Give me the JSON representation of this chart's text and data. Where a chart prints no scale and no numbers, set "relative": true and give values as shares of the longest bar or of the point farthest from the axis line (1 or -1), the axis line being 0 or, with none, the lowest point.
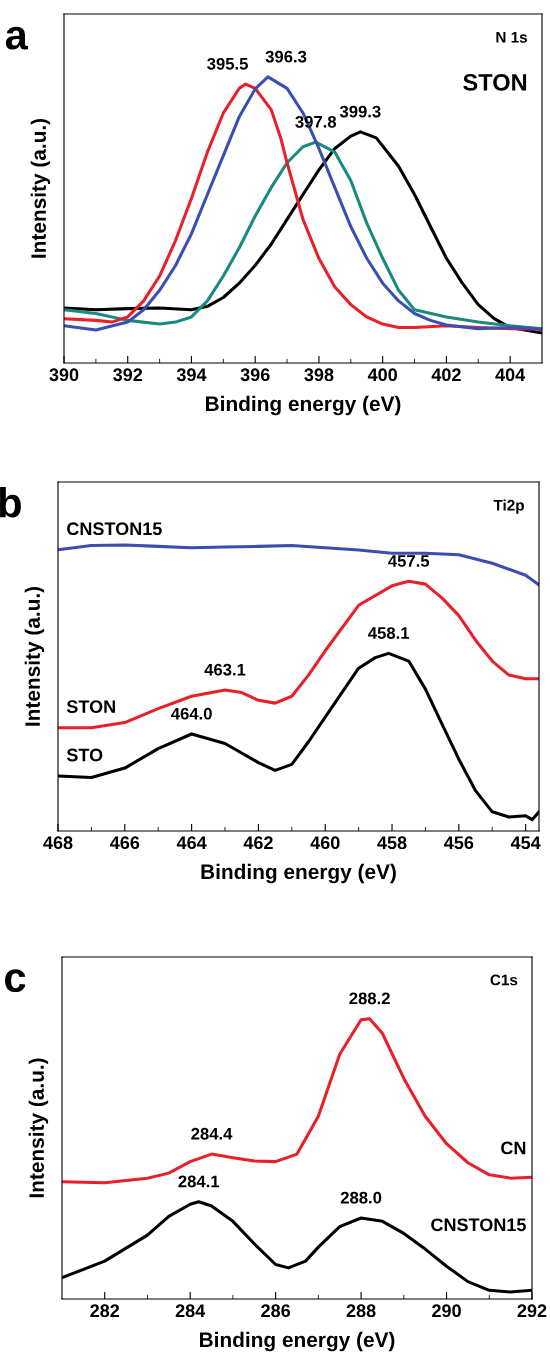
{
  "chart_data": [
    {
      "type": "line",
      "title": "a",
      "xlabel": "Binding energy (eV)",
      "ylabel": "Intensity (a.u.)",
      "relative": true,
      "xlim": [
        390,
        405
      ],
      "xticks": [
        390,
        392,
        394,
        396,
        398,
        400,
        402,
        404
      ],
      "grid": false,
      "legend": false,
      "series": [
        {
          "color": "#000000",
          "x": [
            390,
            391,
            392,
            393,
            394,
            394.5,
            395,
            395.5,
            396,
            396.5,
            397,
            397.5,
            398,
            398.5,
            399,
            399.3,
            399.8,
            400.5,
            401,
            401.5,
            402,
            402.5,
            403,
            403.5,
            404,
            405
          ],
          "values": [
            0.192,
            0.186,
            0.19,
            0.192,
            0.186,
            0.198,
            0.229,
            0.279,
            0.341,
            0.415,
            0.502,
            0.589,
            0.675,
            0.75,
            0.793,
            0.808,
            0.787,
            0.688,
            0.589,
            0.477,
            0.366,
            0.279,
            0.204,
            0.155,
            0.124,
            0.105
          ]
        },
        {
          "color": "#1a8a80",
          "x": [
            390,
            391,
            392,
            393,
            393.5,
            394,
            394.5,
            395,
            395.5,
            396,
            396.5,
            397,
            397.5,
            397.9,
            398.5,
            399,
            399.5,
            400,
            400.5,
            401,
            402,
            403,
            404,
            405
          ],
          "values": [
            0.186,
            0.173,
            0.149,
            0.136,
            0.143,
            0.161,
            0.217,
            0.304,
            0.403,
            0.514,
            0.613,
            0.7,
            0.756,
            0.772,
            0.737,
            0.638,
            0.489,
            0.366,
            0.254,
            0.186,
            0.161,
            0.143,
            0.13,
            0.12
          ]
        },
        {
          "color": "#e8202a",
          "x": [
            390,
            391,
            391.5,
            392,
            392.5,
            393,
            393.5,
            394,
            394.5,
            395,
            395.5,
            395.7,
            396,
            396.5,
            396.8,
            397,
            397.5,
            398,
            398.5,
            399,
            399.5,
            400,
            400.5,
            401,
            402,
            403,
            404,
            405
          ],
          "values": [
            0.155,
            0.149,
            0.143,
            0.161,
            0.217,
            0.304,
            0.428,
            0.576,
            0.737,
            0.874,
            0.96,
            0.975,
            0.96,
            0.886,
            0.787,
            0.7,
            0.502,
            0.365,
            0.266,
            0.204,
            0.161,
            0.136,
            0.124,
            0.124,
            0.13,
            0.124,
            0.12,
            0.118
          ]
        },
        {
          "color": "#3a4fb0",
          "x": [
            390,
            391,
            392,
            392.5,
            393,
            393.5,
            394,
            394.5,
            395,
            395.5,
            396,
            396.4,
            397,
            397.5,
            398,
            398.5,
            399,
            399.5,
            400,
            400.5,
            401,
            401.5,
            402,
            403,
            404,
            405
          ],
          "values": [
            0.13,
            0.115,
            0.143,
            0.186,
            0.254,
            0.341,
            0.452,
            0.589,
            0.725,
            0.861,
            0.958,
            1.0,
            0.96,
            0.874,
            0.75,
            0.613,
            0.477,
            0.366,
            0.279,
            0.217,
            0.173,
            0.149,
            0.133,
            0.12,
            0.124,
            0.118
          ]
        }
      ],
      "annotations": [
        "N 1s",
        "STON",
        {
          "text": "395.5",
          "x": 395.7,
          "y": 0.975
        },
        {
          "text": "396.3",
          "x": 396.4,
          "y": 1.0
        },
        {
          "text": "397.8",
          "x": 397.9,
          "y": 0.772
        },
        {
          "text": "399.3",
          "x": 399.3,
          "y": 0.808
        }
      ]
    },
    {
      "type": "line",
      "title": "b",
      "xlabel": "Binding energy (eV)",
      "ylabel": "Intensity (a.u.)",
      "relative": true,
      "xlim": [
        468,
        453.6
      ],
      "xticks": [
        468,
        466,
        464,
        462,
        460,
        458,
        456,
        454
      ],
      "grid": false,
      "legend": false,
      "series": [
        {
          "name": "CNSTON15",
          "color": "#3a4fb0",
          "x": [
            468,
            467,
            466,
            465,
            464,
            463,
            462,
            461,
            460,
            459,
            458,
            457,
            456,
            455,
            454,
            453.6
          ],
          "values": [
            0.983,
            0.998,
            1.0,
            0.995,
            0.99,
            0.993,
            0.995,
            0.998,
            0.99,
            0.982,
            0.971,
            0.971,
            0.966,
            0.936,
            0.894,
            0.86
          ]
        },
        {
          "name": "STON",
          "color": "#e8202a",
          "x": [
            468,
            467,
            466,
            465,
            464,
            463,
            462.5,
            462,
            461.5,
            461,
            460.5,
            460,
            459,
            458,
            457.5,
            457,
            456.5,
            456,
            455.5,
            455,
            454.5,
            454,
            453.6
          ],
          "values": [
            0.361,
            0.361,
            0.379,
            0.428,
            0.471,
            0.493,
            0.484,
            0.457,
            0.447,
            0.471,
            0.545,
            0.63,
            0.789,
            0.857,
            0.873,
            0.863,
            0.814,
            0.753,
            0.667,
            0.594,
            0.545,
            0.532,
            0.532
          ]
        },
        {
          "name": "STO",
          "color": "#000000",
          "x": [
            468,
            467,
            466,
            465,
            464,
            463,
            462,
            461.5,
            461,
            460.5,
            460,
            459,
            458.5,
            458.1,
            457.5,
            457,
            456.5,
            456,
            455.5,
            455,
            454.5,
            454,
            453.8,
            453.6
          ],
          "values": [
            0.192,
            0.187,
            0.22,
            0.288,
            0.339,
            0.306,
            0.239,
            0.212,
            0.233,
            0.312,
            0.398,
            0.569,
            0.606,
            0.621,
            0.594,
            0.496,
            0.373,
            0.251,
            0.141,
            0.067,
            0.049,
            0.053,
            0.04,
            0.067
          ]
        }
      ],
      "annotations": [
        "Ti2p",
        {
          "text": "457.5",
          "x": 457.5,
          "y": 0.873
        },
        {
          "text": "463.1",
          "x": 463,
          "y": 0.493
        },
        {
          "text": "458.1",
          "x": 458.1,
          "y": 0.621
        },
        {
          "text": "464.0",
          "x": 464,
          "y": 0.339
        }
      ]
    },
    {
      "type": "line",
      "title": "c",
      "xlabel": "Binding energy (eV)",
      "ylabel": "Intensity (a.u.)",
      "relative": true,
      "xlim": [
        281,
        292
      ],
      "xticks": [
        282,
        284,
        286,
        288,
        290,
        292
      ],
      "grid": false,
      "legend": false,
      "series": [
        {
          "name": "CN",
          "color": "#e8202a",
          "x": [
            281,
            282,
            283,
            283.5,
            284,
            284.5,
            285,
            285.5,
            286,
            286.5,
            287,
            287.5,
            288,
            288.2,
            288.5,
            289,
            289.5,
            290,
            290.5,
            291,
            291.5,
            292
          ],
          "values": [
            0.418,
            0.415,
            0.431,
            0.449,
            0.49,
            0.517,
            0.504,
            0.492,
            0.49,
            0.517,
            0.652,
            0.873,
            0.996,
            1.0,
            0.947,
            0.787,
            0.652,
            0.554,
            0.486,
            0.443,
            0.431,
            0.434
          ]
        },
        {
          "name": "CNSTON15",
          "color": "#000000",
          "x": [
            281,
            282,
            283,
            283.5,
            284,
            284.2,
            284.5,
            285,
            285.5,
            286,
            286.3,
            286.7,
            287,
            287.5,
            288,
            288.5,
            289,
            289.5,
            290,
            290.5,
            291,
            291.5,
            292
          ],
          "values": [
            0.076,
            0.135,
            0.228,
            0.295,
            0.338,
            0.347,
            0.332,
            0.277,
            0.197,
            0.123,
            0.111,
            0.135,
            0.185,
            0.258,
            0.289,
            0.277,
            0.234,
            0.178,
            0.117,
            0.062,
            0.031,
            0.025,
            0.031
          ]
        }
      ],
      "annotations": [
        "C1s",
        {
          "text": "288.2",
          "x": 288.2,
          "y": 1.0
        },
        {
          "text": "284.4",
          "x": 284.5,
          "y": 0.517
        },
        {
          "text": "284.1",
          "x": 284.2,
          "y": 0.347
        },
        {
          "text": "288.0",
          "x": 288,
          "y": 0.289
        }
      ]
    }
  ]
}
